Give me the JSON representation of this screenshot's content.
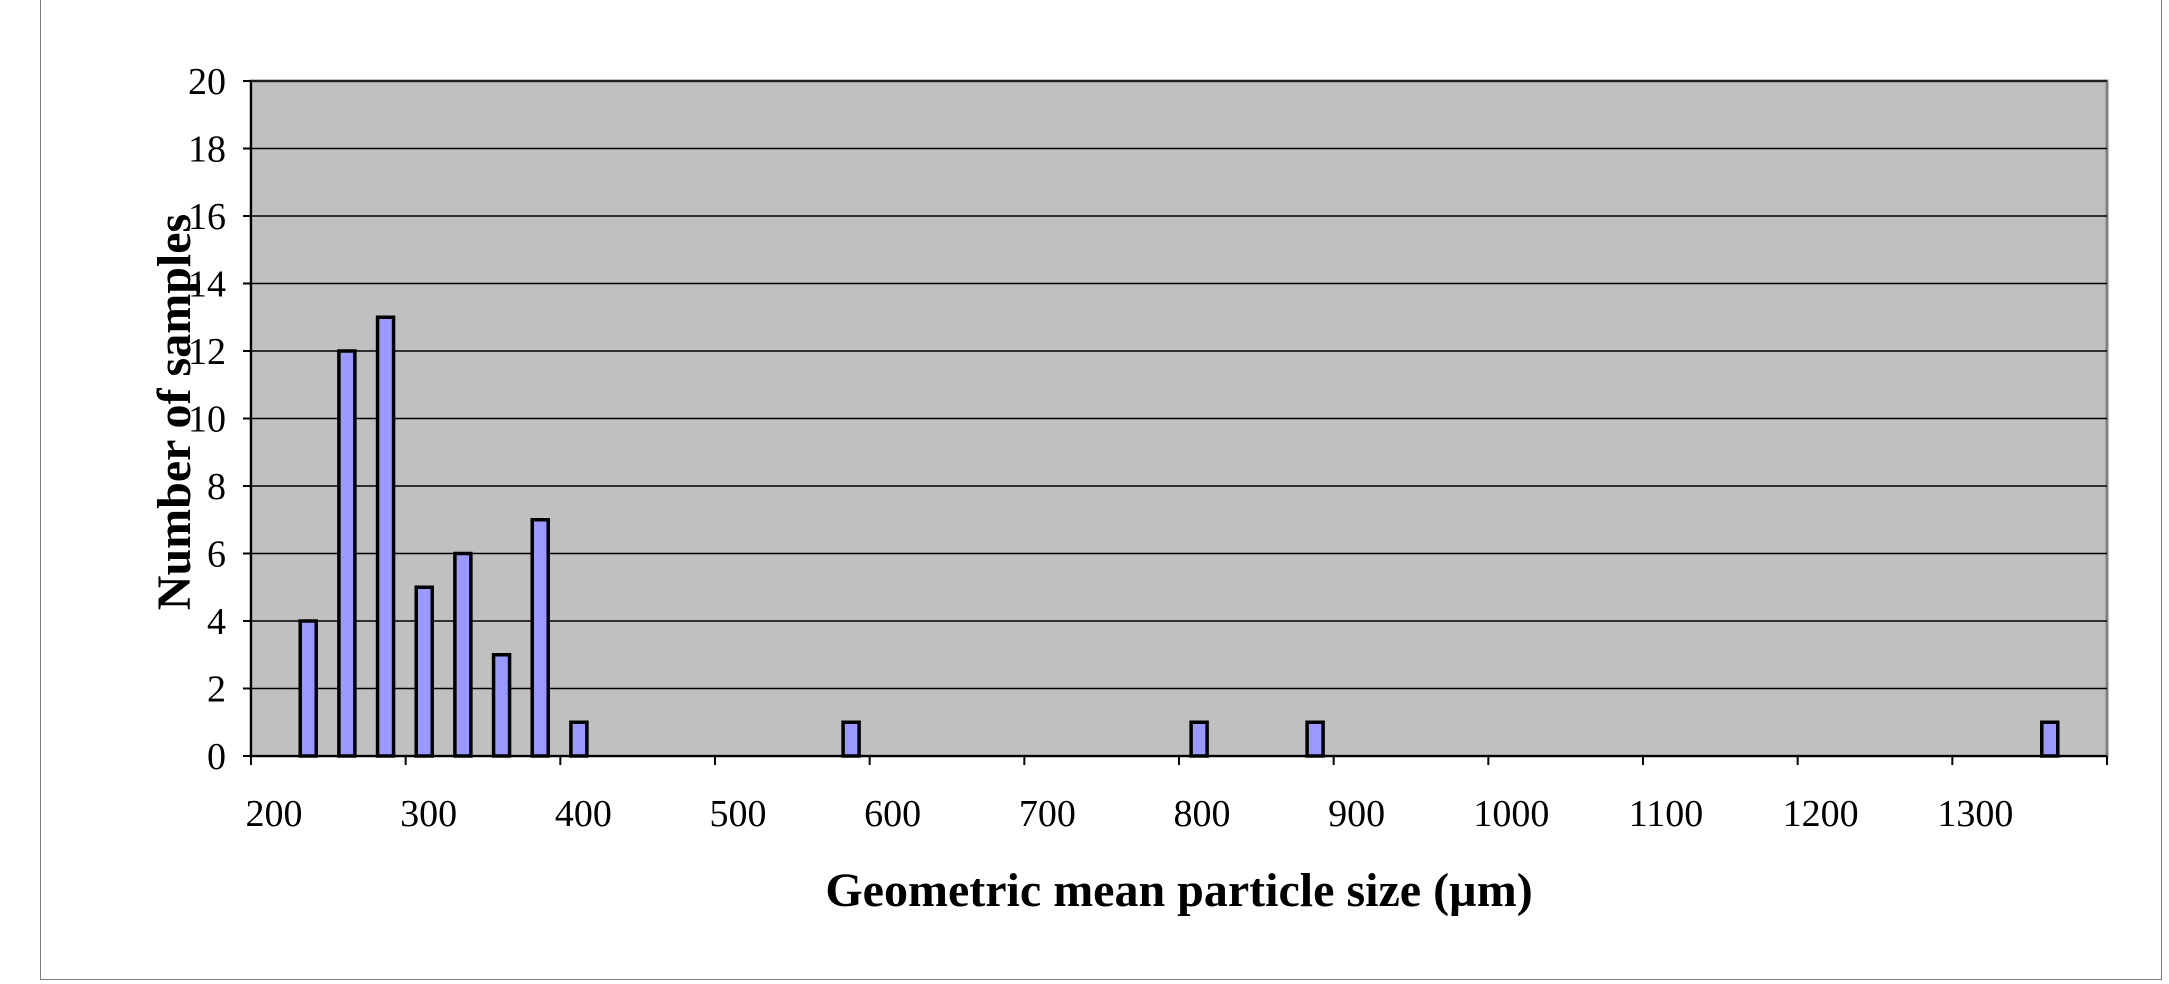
{
  "chart_data": {
    "type": "bar",
    "xlabel": "Geometric mean particle size (µm)",
    "ylabel": "Number of samples",
    "xlim": [
      200,
      1400
    ],
    "ylim": [
      0,
      20
    ],
    "x_ticks": [
      "200",
      "300",
      "400",
      "500",
      "600",
      "700",
      "800",
      "900",
      "1000",
      "1100",
      "1200",
      "1300"
    ],
    "y_ticks": [
      "0",
      "2",
      "4",
      "6",
      "8",
      "10",
      "12",
      "14",
      "16",
      "18",
      "20"
    ],
    "grid": true,
    "legend": "none",
    "colors": {
      "bar_fill": "#9999ff",
      "bar_stroke": "#000000",
      "plot_background": "#c0c0c0",
      "gridline": "#000000"
    },
    "x": [
      237,
      262,
      287,
      312,
      337,
      362,
      387,
      412,
      588,
      813,
      888,
      1363
    ],
    "values": [
      4,
      12,
      13,
      5,
      6,
      3,
      7,
      1,
      1,
      1,
      1,
      1
    ]
  }
}
